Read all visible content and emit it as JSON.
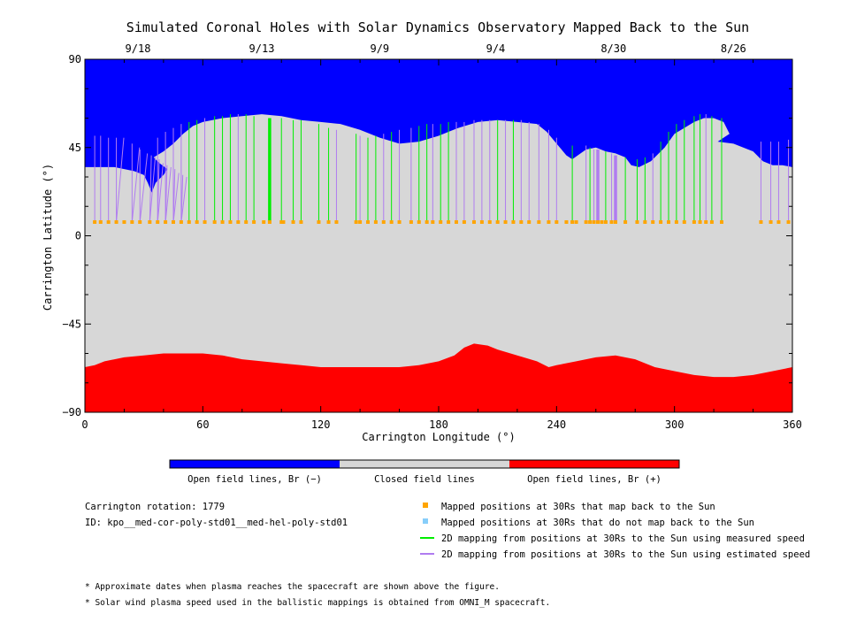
{
  "chart_data": {
    "type": "map",
    "title": "Simulated Coronal Holes with Solar Dynamics Observatory Mapped Back to the Sun",
    "xlabel": "Carrington Longitude (°)",
    "ylabel": "Carrington Latitude (°)",
    "xlim": [
      0,
      360
    ],
    "ylim": [
      -90,
      90
    ],
    "x_ticks": [
      "0",
      "60",
      "120",
      "180",
      "240",
      "300",
      "360"
    ],
    "y_ticks": [
      "90",
      "45",
      "0",
      "-45",
      "-90"
    ],
    "date_ticks": [
      {
        "lon": 27,
        "label": "9/18"
      },
      {
        "lon": 90,
        "label": "9/13"
      },
      {
        "lon": 150,
        "label": "9/9"
      },
      {
        "lon": 209,
        "label": "9/4"
      },
      {
        "lon": 269,
        "label": "8/30"
      },
      {
        "lon": 330,
        "label": "8/26"
      }
    ],
    "regions": {
      "north_boundary": [
        [
          0,
          35
        ],
        [
          5,
          35
        ],
        [
          15,
          35
        ],
        [
          20,
          34
        ],
        [
          25,
          33
        ],
        [
          30,
          31
        ],
        [
          32,
          27
        ],
        [
          34,
          22
        ],
        [
          36,
          27
        ],
        [
          40,
          31
        ],
        [
          42,
          34
        ],
        [
          38,
          37
        ],
        [
          35,
          40
        ],
        [
          40,
          43
        ],
        [
          45,
          47
        ],
        [
          50,
          52
        ],
        [
          55,
          56
        ],
        [
          60,
          58
        ],
        [
          70,
          60
        ],
        [
          80,
          61
        ],
        [
          90,
          62
        ],
        [
          100,
          61
        ],
        [
          110,
          59
        ],
        [
          120,
          58
        ],
        [
          130,
          57
        ],
        [
          140,
          54
        ],
        [
          150,
          50
        ],
        [
          160,
          47
        ],
        [
          170,
          48
        ],
        [
          180,
          51
        ],
        [
          190,
          55
        ],
        [
          200,
          58
        ],
        [
          210,
          59
        ],
        [
          220,
          58
        ],
        [
          230,
          57
        ],
        [
          235,
          53
        ],
        [
          240,
          47
        ],
        [
          245,
          41
        ],
        [
          248,
          39
        ],
        [
          255,
          44
        ],
        [
          260,
          45
        ],
        [
          265,
          43
        ],
        [
          270,
          42
        ],
        [
          275,
          40
        ],
        [
          278,
          36
        ],
        [
          282,
          35
        ],
        [
          288,
          38
        ],
        [
          295,
          45
        ],
        [
          300,
          52
        ],
        [
          305,
          55
        ],
        [
          310,
          58
        ],
        [
          315,
          60
        ],
        [
          320,
          60
        ],
        [
          325,
          58
        ],
        [
          328,
          52
        ],
        [
          325,
          50
        ],
        [
          322,
          48
        ],
        [
          330,
          47
        ],
        [
          340,
          43
        ],
        [
          345,
          38
        ],
        [
          350,
          36
        ],
        [
          355,
          36
        ],
        [
          360,
          35
        ]
      ],
      "south_boundary": [
        [
          0,
          -67
        ],
        [
          5,
          -66
        ],
        [
          10,
          -64
        ],
        [
          20,
          -62
        ],
        [
          30,
          -61
        ],
        [
          40,
          -60
        ],
        [
          50,
          -60
        ],
        [
          60,
          -60
        ],
        [
          70,
          -61
        ],
        [
          80,
          -63
        ],
        [
          90,
          -64
        ],
        [
          100,
          -65
        ],
        [
          110,
          -66
        ],
        [
          120,
          -67
        ],
        [
          130,
          -67
        ],
        [
          140,
          -67
        ],
        [
          150,
          -67
        ],
        [
          160,
          -67
        ],
        [
          170,
          -66
        ],
        [
          180,
          -64
        ],
        [
          188,
          -61
        ],
        [
          193,
          -57
        ],
        [
          198,
          -55
        ],
        [
          205,
          -56
        ],
        [
          210,
          -58
        ],
        [
          220,
          -61
        ],
        [
          230,
          -64
        ],
        [
          236,
          -67
        ],
        [
          240,
          -66
        ],
        [
          250,
          -64
        ],
        [
          260,
          -62
        ],
        [
          270,
          -61
        ],
        [
          280,
          -63
        ],
        [
          290,
          -67
        ],
        [
          300,
          -69
        ],
        [
          310,
          -71
        ],
        [
          320,
          -72
        ],
        [
          330,
          -72
        ],
        [
          340,
          -71
        ],
        [
          350,
          -69
        ],
        [
          360,
          -67
        ]
      ]
    },
    "colorbar": {
      "segments": [
        {
          "label": "Open field lines, Br (−)",
          "color": "#0000ff"
        },
        {
          "label": "Closed field lines",
          "color": "#d7d7d7"
        },
        {
          "label": "Open field lines, Br (+)",
          "color": "#ff0000"
        }
      ]
    },
    "mapped_point_latitude": 7,
    "mapped_points_lon": [
      5,
      8,
      12,
      16,
      20,
      24,
      28,
      33,
      37,
      41,
      45,
      49,
      53,
      57,
      61,
      66,
      70,
      74,
      78,
      82,
      86,
      91,
      94,
      100,
      101,
      106,
      110,
      119,
      124,
      128,
      138,
      140,
      144,
      148,
      152,
      156,
      160,
      166,
      170,
      174,
      177,
      181,
      185,
      189,
      193,
      198,
      202,
      206,
      210,
      214,
      218,
      222,
      226,
      231,
      236,
      240,
      245,
      248,
      250,
      255,
      257,
      259,
      261,
      263,
      265,
      268,
      270,
      275,
      281,
      285,
      289,
      293,
      297,
      301,
      305,
      310,
      313,
      316,
      319,
      324,
      344,
      349,
      353,
      358
    ],
    "mapping_lines": [
      {
        "lon": 5,
        "lat": 51,
        "type": "estimated"
      },
      {
        "lon": 8,
        "lat": 51,
        "type": "estimated"
      },
      {
        "lon": 12,
        "lat": 50,
        "type": "estimated"
      },
      {
        "lon": 16,
        "lat": 50,
        "type": "estimated"
      },
      {
        "lon": 18,
        "lat": 50,
        "type": "estimated"
      },
      {
        "lon": 24,
        "lat": 47,
        "type": "estimated"
      },
      {
        "lon": 26,
        "lat": 45,
        "type": "estimated"
      },
      {
        "lon": 28,
        "lat": 44,
        "type": "estimated"
      },
      {
        "lon": 30,
        "lat": 42,
        "type": "estimated"
      },
      {
        "lon": 32,
        "lat": 41,
        "type": "estimated"
      },
      {
        "lon": 34,
        "lat": 40,
        "type": "estimated"
      },
      {
        "lon": 36,
        "lat": 39,
        "type": "estimated"
      },
      {
        "lon": 38,
        "lat": 37,
        "type": "estimated"
      },
      {
        "lon": 40,
        "lat": 36,
        "type": "estimated"
      },
      {
        "lon": 42,
        "lat": 35,
        "type": "estimated"
      },
      {
        "lon": 44,
        "lat": 34,
        "type": "estimated"
      },
      {
        "lon": 46,
        "lat": 32,
        "type": "estimated"
      },
      {
        "lon": 48,
        "lat": 31,
        "type": "estimated"
      },
      {
        "lon": 50,
        "lat": 30,
        "type": "estimated"
      },
      {
        "lon": 37,
        "lat": 50,
        "type": "estimated"
      },
      {
        "lon": 41,
        "lat": 53,
        "type": "estimated"
      },
      {
        "lon": 45,
        "lat": 55,
        "type": "estimated"
      },
      {
        "lon": 49,
        "lat": 57,
        "type": "estimated"
      },
      {
        "lon": 53,
        "lat": 58,
        "type": "measured"
      },
      {
        "lon": 57,
        "lat": 59,
        "type": "measured"
      },
      {
        "lon": 61,
        "lat": 60,
        "type": "estimated"
      },
      {
        "lon": 66,
        "lat": 61,
        "type": "measured"
      },
      {
        "lon": 70,
        "lat": 61,
        "type": "measured"
      },
      {
        "lon": 74,
        "lat": 62,
        "type": "measured"
      },
      {
        "lon": 78,
        "lat": 62,
        "type": "estimated"
      },
      {
        "lon": 82,
        "lat": 62,
        "type": "measured"
      },
      {
        "lon": 86,
        "lat": 61,
        "type": "measured"
      },
      {
        "lon": 94,
        "lat": 60,
        "type": "measured",
        "bold": true
      },
      {
        "lon": 100,
        "lat": 60,
        "type": "measured"
      },
      {
        "lon": 106,
        "lat": 59,
        "type": "measured"
      },
      {
        "lon": 110,
        "lat": 59,
        "type": "measured"
      },
      {
        "lon": 119,
        "lat": 57,
        "type": "measured"
      },
      {
        "lon": 124,
        "lat": 55,
        "type": "measured"
      },
      {
        "lon": 128,
        "lat": 54,
        "type": "estimated"
      },
      {
        "lon": 138,
        "lat": 52,
        "type": "measured"
      },
      {
        "lon": 140,
        "lat": 51,
        "type": "estimated"
      },
      {
        "lon": 144,
        "lat": 50,
        "type": "measured"
      },
      {
        "lon": 148,
        "lat": 51,
        "type": "measured"
      },
      {
        "lon": 152,
        "lat": 52,
        "type": "estimated"
      },
      {
        "lon": 156,
        "lat": 53,
        "type": "measured"
      },
      {
        "lon": 160,
        "lat": 54,
        "type": "estimated"
      },
      {
        "lon": 166,
        "lat": 55,
        "type": "estimated"
      },
      {
        "lon": 170,
        "lat": 56,
        "type": "measured"
      },
      {
        "lon": 174,
        "lat": 57,
        "type": "measured"
      },
      {
        "lon": 177,
        "lat": 57,
        "type": "estimated"
      },
      {
        "lon": 181,
        "lat": 57,
        "type": "measured"
      },
      {
        "lon": 185,
        "lat": 58,
        "type": "measured"
      },
      {
        "lon": 189,
        "lat": 58,
        "type": "estimated"
      },
      {
        "lon": 193,
        "lat": 58,
        "type": "estimated"
      },
      {
        "lon": 198,
        "lat": 59,
        "type": "estimated"
      },
      {
        "lon": 202,
        "lat": 59,
        "type": "estimated"
      },
      {
        "lon": 206,
        "lat": 59,
        "type": "estimated"
      },
      {
        "lon": 210,
        "lat": 59,
        "type": "measured"
      },
      {
        "lon": 214,
        "lat": 59,
        "type": "estimated"
      },
      {
        "lon": 218,
        "lat": 59,
        "type": "measured"
      },
      {
        "lon": 222,
        "lat": 59,
        "type": "estimated"
      },
      {
        "lon": 226,
        "lat": 58,
        "type": "estimated"
      },
      {
        "lon": 231,
        "lat": 57,
        "type": "estimated"
      },
      {
        "lon": 236,
        "lat": 54,
        "type": "estimated"
      },
      {
        "lon": 240,
        "lat": 50,
        "type": "estimated"
      },
      {
        "lon": 248,
        "lat": 46,
        "type": "measured"
      },
      {
        "lon": 255,
        "lat": 46,
        "type": "estimated"
      },
      {
        "lon": 257,
        "lat": 45,
        "type": "measured"
      },
      {
        "lon": 259,
        "lat": 44,
        "type": "estimated"
      },
      {
        "lon": 261,
        "lat": 44,
        "type": "estimated",
        "bold": true
      },
      {
        "lon": 265,
        "lat": 43,
        "type": "measured"
      },
      {
        "lon": 268,
        "lat": 42,
        "type": "estimated"
      },
      {
        "lon": 270,
        "lat": 41,
        "type": "estimated",
        "bold": true
      },
      {
        "lon": 275,
        "lat": 40,
        "type": "measured"
      },
      {
        "lon": 281,
        "lat": 39,
        "type": "measured"
      },
      {
        "lon": 285,
        "lat": 40,
        "type": "measured"
      },
      {
        "lon": 289,
        "lat": 42,
        "type": "estimated"
      },
      {
        "lon": 293,
        "lat": 48,
        "type": "measured"
      },
      {
        "lon": 297,
        "lat": 53,
        "type": "measured"
      },
      {
        "lon": 301,
        "lat": 57,
        "type": "measured"
      },
      {
        "lon": 305,
        "lat": 59,
        "type": "measured"
      },
      {
        "lon": 310,
        "lat": 61,
        "type": "measured"
      },
      {
        "lon": 313,
        "lat": 62,
        "type": "measured"
      },
      {
        "lon": 316,
        "lat": 62,
        "type": "estimated"
      },
      {
        "lon": 319,
        "lat": 61,
        "type": "measured"
      },
      {
        "lon": 324,
        "lat": 60,
        "type": "measured"
      },
      {
        "lon": 344,
        "lat": 48,
        "type": "estimated"
      },
      {
        "lon": 349,
        "lat": 48,
        "type": "estimated"
      },
      {
        "lon": 353,
        "lat": 48,
        "type": "estimated"
      },
      {
        "lon": 358,
        "lat": 49,
        "type": "estimated"
      }
    ],
    "info": {
      "rotation": "Carrington rotation: 1779",
      "id": "ID: kpo__med-cor-poly-std01__med-hel-poly-std01"
    },
    "legend": [
      {
        "label": "Mapped positions at 30Rs that map back to the Sun",
        "kind": "square",
        "color": "#ffa500"
      },
      {
        "label": "Mapped positions at 30Rs that do not map back to the Sun",
        "kind": "square",
        "color": "#87cefa"
      },
      {
        "label": "2D mapping from positions at 30Rs to the Sun using measured speed",
        "kind": "line",
        "color": "#00ee00"
      },
      {
        "label": "2D mapping from positions at 30Rs to the Sun using estimated speed",
        "kind": "line",
        "color": "#b07cf0"
      }
    ],
    "notes": [
      "* Approximate dates when plasma reaches the spacecraft are shown above the figure.",
      "* Solar wind plasma speed used in the ballistic mappings is obtained from OMNI_M spacecraft."
    ],
    "colors": {
      "open_negative": "#0000ff",
      "closed": "#d7d7d7",
      "open_positive": "#ff0000",
      "measured_line": "#00ee00",
      "estimated_line": "#b07cf0",
      "mapped_point": "#ffa500",
      "unmapped_point": "#87cefa"
    }
  }
}
